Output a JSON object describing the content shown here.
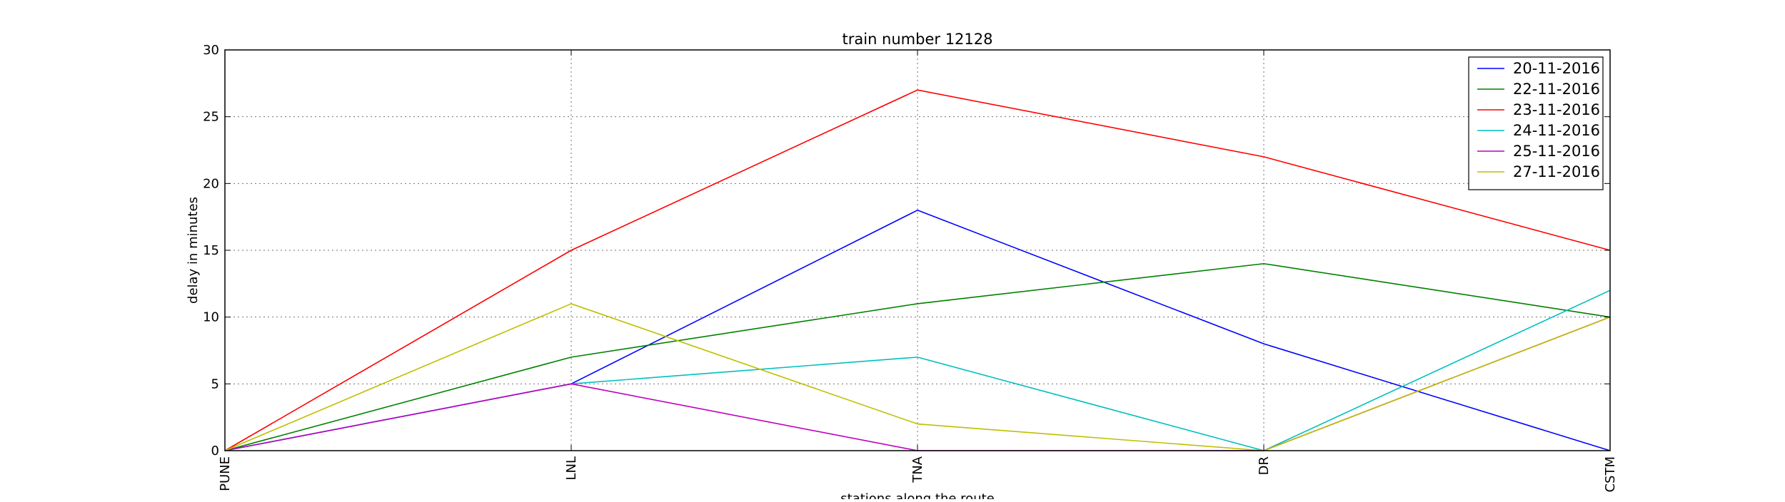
{
  "chart_data": {
    "type": "line",
    "title": "train number 12128",
    "xlabel": "stations along the route",
    "ylabel": "delay in minutes",
    "categories": [
      "PUNE",
      "LNL",
      "TNA",
      "DR",
      "CSTM"
    ],
    "ylim": [
      0,
      30
    ],
    "yticks": [
      0,
      5,
      10,
      15,
      20,
      25,
      30
    ],
    "grid": true,
    "legend_position": "top-right",
    "series": [
      {
        "name": "20-11-2016",
        "color": "#0000ff",
        "values": [
          0,
          5,
          18,
          8,
          0
        ]
      },
      {
        "name": "22-11-2016",
        "color": "#008000",
        "values": [
          0,
          7,
          11,
          14,
          10
        ]
      },
      {
        "name": "23-11-2016",
        "color": "#ff0000",
        "values": [
          0,
          15,
          27,
          22,
          15
        ]
      },
      {
        "name": "24-11-2016",
        "color": "#00bfbf",
        "values": [
          0,
          5,
          7,
          0,
          12
        ]
      },
      {
        "name": "25-11-2016",
        "color": "#bf00bf",
        "values": [
          0,
          5,
          0,
          0,
          10
        ]
      },
      {
        "name": "27-11-2016",
        "color": "#bfbf00",
        "values": [
          0,
          11,
          2,
          0,
          10
        ]
      }
    ]
  }
}
